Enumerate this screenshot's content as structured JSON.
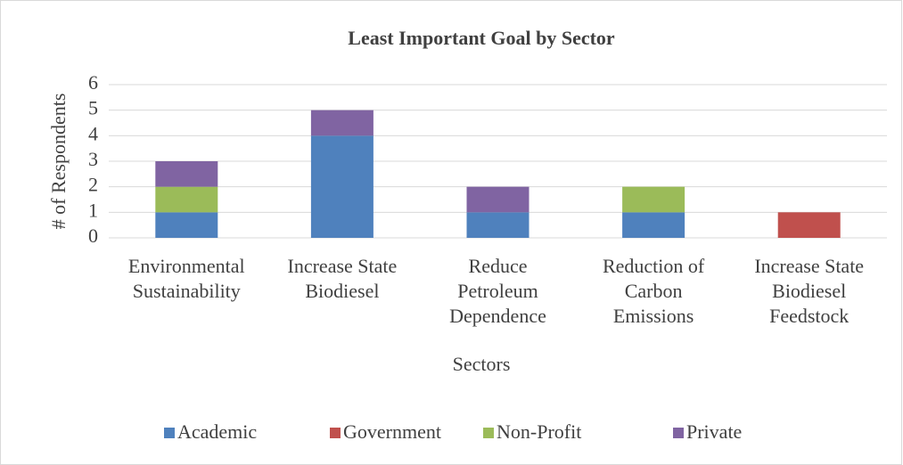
{
  "chart_data": {
    "type": "bar",
    "stacked": true,
    "title": "Least Important Goal by Sector",
    "x_label": "Sectors",
    "y_label": "# of Respondents",
    "categories": [
      [
        "Environmental",
        "Sustainability"
      ],
      [
        "Increase State",
        "Biodiesel"
      ],
      [
        "Reduce",
        "Petroleum",
        "Dependence"
      ],
      [
        "Reduction of",
        "Carbon",
        "Emissions"
      ],
      [
        "Increase State",
        "Biodiesel",
        "Feedstock"
      ]
    ],
    "series": [
      {
        "name": "Academic",
        "color": "#4f81bd",
        "values": [
          1,
          4,
          1,
          1,
          0
        ]
      },
      {
        "name": "Government",
        "color": "#c0504d",
        "values": [
          0,
          0,
          0,
          0,
          1
        ]
      },
      {
        "name": "Non-Profit",
        "color": "#9bbb59",
        "values": [
          1,
          0,
          0,
          1,
          0
        ]
      },
      {
        "name": "Private",
        "color": "#8064a2",
        "values": [
          1,
          1,
          1,
          0,
          0
        ]
      }
    ],
    "ylim": [
      0,
      6
    ],
    "yticks": [
      0,
      1,
      2,
      3,
      4,
      5,
      6
    ],
    "grid": true,
    "legend": "bottom"
  }
}
